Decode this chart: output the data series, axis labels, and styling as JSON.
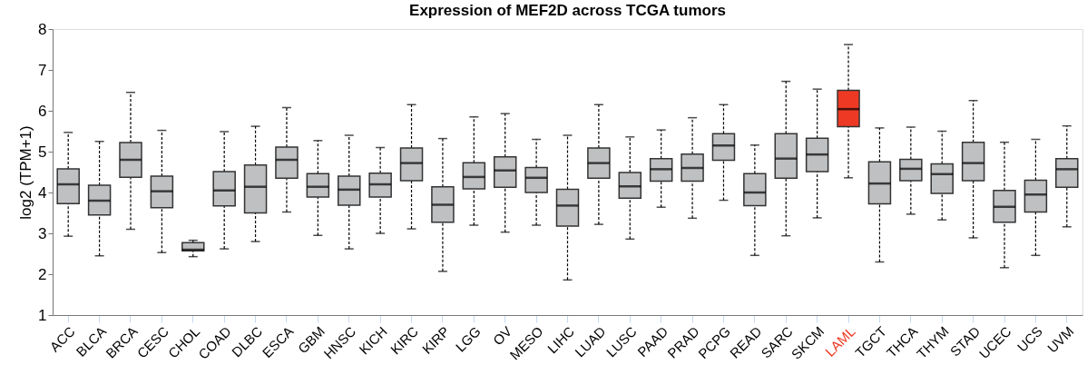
{
  "chart_data": {
    "type": "box",
    "title": "Expression of MEF2D across TCGA tumors",
    "ylabel": "log2 (TPM+1)",
    "categories": [
      "ACC",
      "BLCA",
      "BRCA",
      "CESC",
      "CHOL",
      "COAD",
      "DLBC",
      "ESCA",
      "GBM",
      "HNSC",
      "KICH",
      "KIRC",
      "KIRP",
      "LGG",
      "OV",
      "MESO",
      "LIHC",
      "LUAD",
      "LUSC",
      "PAAD",
      "PRAD",
      "PCPG",
      "READ",
      "SARC",
      "SKCM",
      "LAML",
      "TGCT",
      "THCA",
      "THYM",
      "STAD",
      "UCEC",
      "UCS",
      "UVM"
    ],
    "boxes": [
      {
        "low": 2.93,
        "q1": 3.73,
        "median": 4.2,
        "q3": 4.58,
        "high": 5.47
      },
      {
        "low": 2.45,
        "q1": 3.45,
        "median": 3.8,
        "q3": 4.18,
        "high": 5.25
      },
      {
        "low": 3.1,
        "q1": 4.37,
        "median": 4.8,
        "q3": 5.22,
        "high": 6.45
      },
      {
        "low": 2.53,
        "q1": 3.63,
        "median": 4.03,
        "q3": 4.4,
        "high": 5.52
      },
      {
        "low": 2.43,
        "q1": 2.57,
        "median": 2.6,
        "q3": 2.77,
        "high": 2.83
      },
      {
        "low": 2.62,
        "q1": 3.67,
        "median": 4.05,
        "q3": 4.51,
        "high": 5.49
      },
      {
        "low": 2.8,
        "q1": 3.5,
        "median": 4.14,
        "q3": 4.67,
        "high": 5.62
      },
      {
        "low": 3.52,
        "q1": 4.35,
        "median": 4.8,
        "q3": 5.11,
        "high": 6.08
      },
      {
        "low": 2.95,
        "q1": 3.89,
        "median": 4.14,
        "q3": 4.46,
        "high": 5.27
      },
      {
        "low": 2.62,
        "q1": 3.69,
        "median": 4.07,
        "q3": 4.4,
        "high": 5.4
      },
      {
        "low": 3.0,
        "q1": 3.89,
        "median": 4.2,
        "q3": 4.47,
        "high": 5.1
      },
      {
        "low": 3.11,
        "q1": 4.29,
        "median": 4.72,
        "q3": 5.09,
        "high": 6.15
      },
      {
        "low": 2.07,
        "q1": 3.27,
        "median": 3.7,
        "q3": 4.14,
        "high": 5.32
      },
      {
        "low": 3.2,
        "q1": 4.09,
        "median": 4.38,
        "q3": 4.73,
        "high": 5.85
      },
      {
        "low": 3.03,
        "q1": 4.13,
        "median": 4.54,
        "q3": 4.87,
        "high": 5.93
      },
      {
        "low": 3.2,
        "q1": 4.0,
        "median": 4.36,
        "q3": 4.61,
        "high": 5.3
      },
      {
        "low": 1.86,
        "q1": 3.18,
        "median": 3.68,
        "q3": 4.08,
        "high": 5.4
      },
      {
        "low": 3.22,
        "q1": 4.35,
        "median": 4.72,
        "q3": 5.09,
        "high": 6.15
      },
      {
        "low": 2.86,
        "q1": 3.86,
        "median": 4.15,
        "q3": 4.49,
        "high": 5.36
      },
      {
        "low": 3.64,
        "q1": 4.28,
        "median": 4.57,
        "q3": 4.83,
        "high": 5.53
      },
      {
        "low": 3.37,
        "q1": 4.28,
        "median": 4.6,
        "q3": 4.94,
        "high": 5.83
      },
      {
        "low": 3.81,
        "q1": 4.79,
        "median": 5.15,
        "q3": 5.44,
        "high": 6.15
      },
      {
        "low": 2.46,
        "q1": 3.68,
        "median": 4.0,
        "q3": 4.46,
        "high": 5.16
      },
      {
        "low": 2.94,
        "q1": 4.35,
        "median": 4.83,
        "q3": 5.44,
        "high": 6.72
      },
      {
        "low": 3.38,
        "q1": 4.51,
        "median": 4.93,
        "q3": 5.33,
        "high": 6.53
      },
      {
        "low": 4.36,
        "q1": 5.61,
        "median": 6.04,
        "q3": 6.5,
        "high": 7.62
      },
      {
        "low": 2.3,
        "q1": 3.72,
        "median": 4.22,
        "q3": 4.75,
        "high": 5.58
      },
      {
        "low": 3.47,
        "q1": 4.29,
        "median": 4.58,
        "q3": 4.81,
        "high": 5.6
      },
      {
        "low": 3.33,
        "q1": 3.98,
        "median": 4.45,
        "q3": 4.7,
        "high": 5.5
      },
      {
        "low": 2.89,
        "q1": 4.29,
        "median": 4.72,
        "q3": 5.23,
        "high": 6.25
      },
      {
        "low": 2.16,
        "q1": 3.27,
        "median": 3.65,
        "q3": 4.05,
        "high": 5.23
      },
      {
        "low": 2.46,
        "q1": 3.52,
        "median": 3.95,
        "q3": 4.3,
        "high": 5.3
      },
      {
        "low": 3.16,
        "q1": 4.13,
        "median": 4.57,
        "q3": 4.83,
        "high": 5.63
      }
    ],
    "colors": [
      "#bfc0c2",
      "#bfc0c2",
      "#bfc0c2",
      "#bfc0c2",
      "#bfc0c2",
      "#bfc0c2",
      "#bfc0c2",
      "#bfc0c2",
      "#bfc0c2",
      "#bfc0c2",
      "#bfc0c2",
      "#bfc0c2",
      "#bfc0c2",
      "#bfc0c2",
      "#bfc0c2",
      "#bfc0c2",
      "#bfc0c2",
      "#bfc0c2",
      "#bfc0c2",
      "#bfc0c2",
      "#bfc0c2",
      "#bfc0c2",
      "#bfc0c2",
      "#bfc0c2",
      "#bfc0c2",
      "#ee3a24",
      "#bfc0c2",
      "#bfc0c2",
      "#bfc0c2",
      "#bfc0c2",
      "#bfc0c2",
      "#bfc0c2",
      "#bfc0c2"
    ],
    "ylim": [
      1,
      8
    ],
    "yticks": [
      1,
      2,
      3,
      4,
      5,
      6,
      7,
      8
    ],
    "grid": false
  }
}
